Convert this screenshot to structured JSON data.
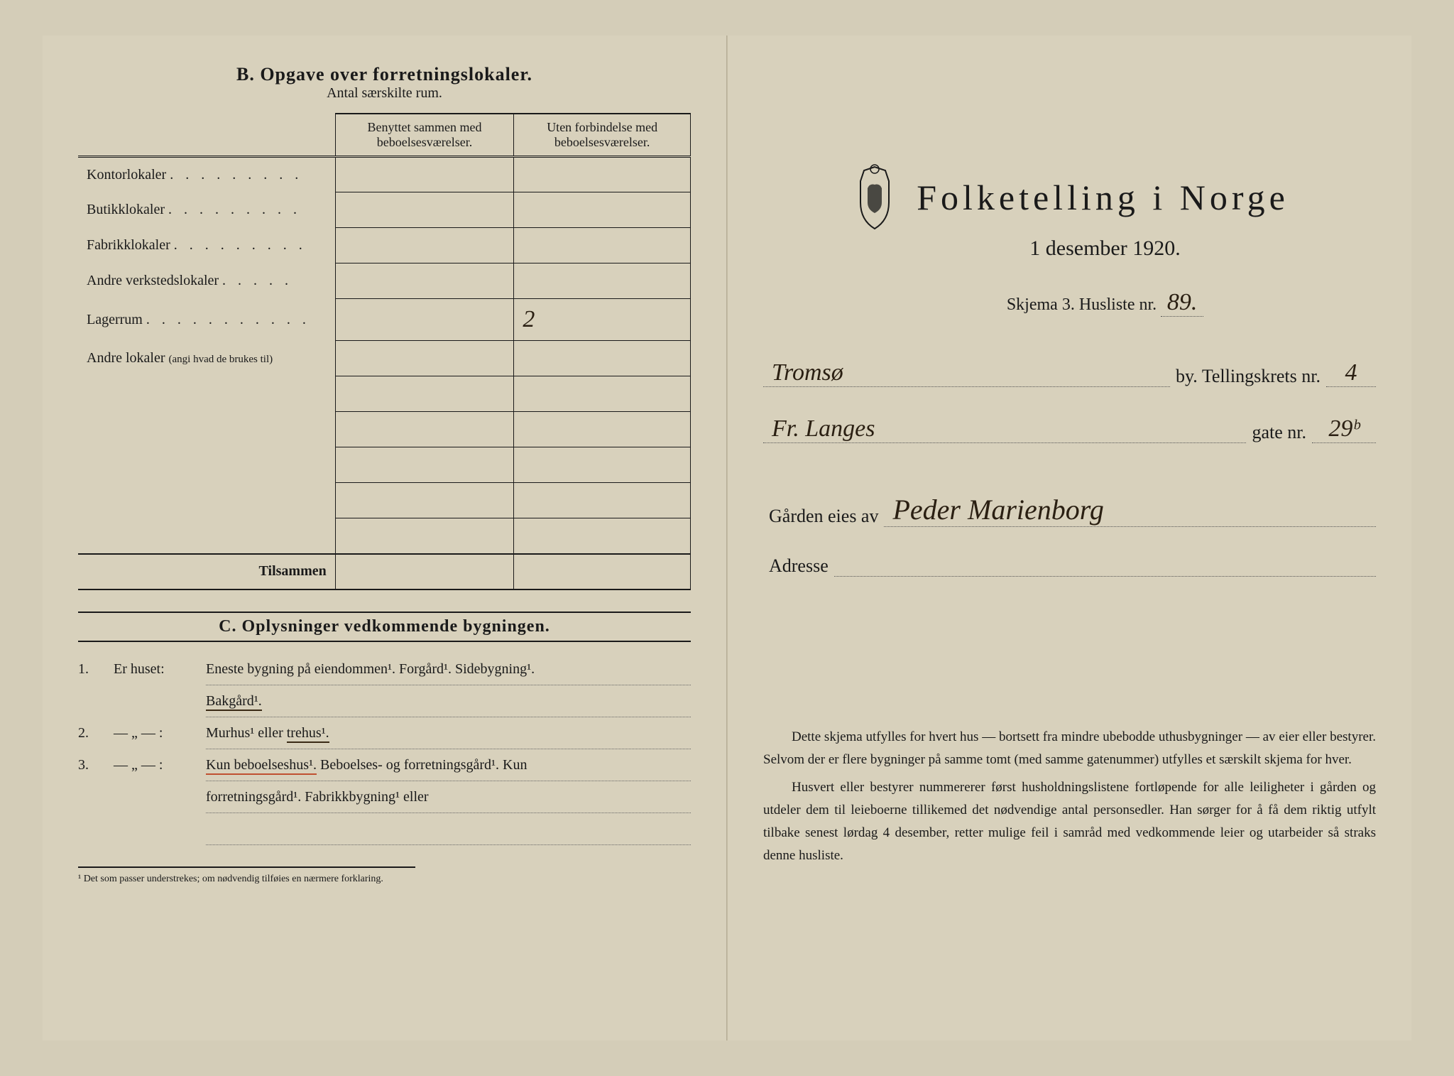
{
  "left": {
    "sectionB": {
      "title": "B.  Opgave over forretningslokaler.",
      "subtitle": "Antal særskilte rum.",
      "col1": "Benyttet sammen med beboelsesværelser.",
      "col2": "Uten forbindelse med beboelsesværelser.",
      "rows": [
        {
          "label": "Kontorlokaler",
          "dots": ". . . . . . . . .",
          "v1": "",
          "v2": ""
        },
        {
          "label": "Butikklokaler",
          "dots": ". . . . . . . . .",
          "v1": "",
          "v2": ""
        },
        {
          "label": "Fabrikklokaler",
          "dots": ". . . . . . . . .",
          "v1": "",
          "v2": ""
        },
        {
          "label": "Andre verkstedslokaler",
          "dots": ". . . . .",
          "v1": "",
          "v2": ""
        },
        {
          "label": "Lagerrum",
          "dots": ". . . . . . . . . . .",
          "v1": "",
          "v2": "2"
        },
        {
          "label": "Andre lokaler",
          "sublabel": "(angi hvad de brukes til)",
          "dots": "",
          "v1": "",
          "v2": ""
        },
        {
          "label": "",
          "v1": "",
          "v2": ""
        },
        {
          "label": "",
          "v1": "",
          "v2": ""
        },
        {
          "label": "",
          "v1": "",
          "v2": ""
        },
        {
          "label": "",
          "v1": "",
          "v2": ""
        },
        {
          "label": "",
          "v1": "",
          "v2": ""
        }
      ],
      "sumLabel": "Tilsammen"
    },
    "sectionC": {
      "title": "C.  Oplysninger vedkommende bygningen.",
      "q1num": "1.",
      "q1label": "Er huset:",
      "q1text_a": "Eneste bygning på eiendommen¹. Forgård¹. Sidebygning¹.",
      "q1text_b": "Bakgård¹.",
      "q2num": "2.",
      "q2label": "— „ — :",
      "q2text_a": "Murhus¹ eller ",
      "q2text_b": "trehus¹.",
      "q3num": "3.",
      "q3label": "— „ — :",
      "q3text_a": "Kun beboelseshus¹.",
      "q3text_b": " Beboelses- og forretningsgård¹. Kun",
      "q3text_c": "forretningsgård¹. Fabrikkbygning¹ eller",
      "footnote": "¹ Det som passer understrekes; om nødvendig tilføies en nærmere forklaring."
    }
  },
  "right": {
    "title": "Folketelling  i  Norge",
    "date": "1 desember 1920.",
    "schema": "Skjema 3.  Husliste nr.",
    "husliste_nr": "89.",
    "by_label": "by.  Tellingskrets nr.",
    "by_value": "Tromsø",
    "krets_nr": "4",
    "gate_label": "gate nr.",
    "gate_value": "Fr. Langes",
    "gate_nr": "29ᵇ",
    "owner_label": "Gården eies av",
    "owner_value": "Peder Marienborg",
    "address_label": "Adresse",
    "address_value": "",
    "bottom_p1": "Dette skjema utfylles for hvert hus — bortsett fra mindre ubebodde uthusbygninger — av eier eller bestyrer. Selvom der er flere bygninger på samme tomt (med samme gatenummer) utfylles et særskilt skjema for hver.",
    "bottom_p2": "Husvert eller bestyrer nummererer først husholdningslistene fortløpende for alle leiligheter i gården og utdeler dem til leieboerne tillikemed det nødvendige antal personsedler. Han sørger for å få dem riktig utfylt tilbake senest lørdag 4 desember, retter mulige feil i samråd med vedkommende leier og utarbeider så straks denne husliste."
  }
}
